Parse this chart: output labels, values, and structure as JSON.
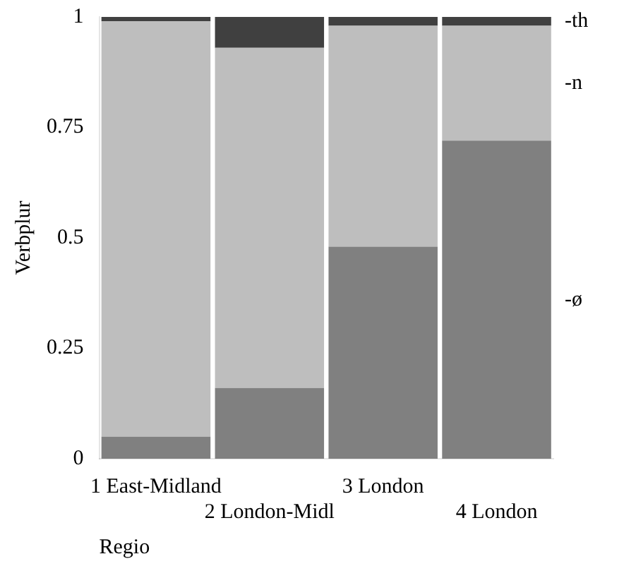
{
  "chart_data": {
    "type": "bar",
    "stacked": true,
    "xlabel": "Regio",
    "ylabel": "Verbplur",
    "categories": [
      "1 East-Midland",
      "2 London-Midl",
      "3 London",
      "4 London"
    ],
    "series": [
      {
        "name": "-ø",
        "color": "#808080",
        "values": [
          0.05,
          0.16,
          0.48,
          0.72
        ]
      },
      {
        "name": "-n",
        "color": "#bebebe",
        "values": [
          0.94,
          0.77,
          0.5,
          0.26
        ]
      },
      {
        "name": "-th",
        "color": "#404040",
        "values": [
          0.01,
          0.07,
          0.02,
          0.02
        ]
      }
    ],
    "ylim": [
      0,
      1
    ],
    "yticks": [
      0,
      0.25,
      0.5,
      0.75,
      1
    ],
    "grid": false,
    "legend": false
  }
}
